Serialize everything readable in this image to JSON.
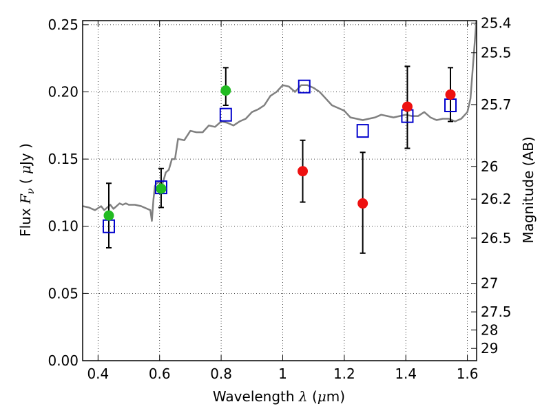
{
  "chart_data": {
    "type": "scatter",
    "xlabel": "Wavelength  λ (μm)",
    "ylabel": "Flux  Fν  ( μJy )",
    "y2label": "Magnitude (AB)",
    "xlim": [
      0.35,
      1.63
    ],
    "ylim": [
      0.0,
      0.253
    ],
    "grid": true,
    "x_ticks": [
      {
        "value": 0.4,
        "label": "0.4"
      },
      {
        "value": 0.6,
        "label": "0.6"
      },
      {
        "value": 0.8,
        "label": "0.8"
      },
      {
        "value": 1.0,
        "label": "1"
      },
      {
        "value": 1.2,
        "label": "1.2"
      },
      {
        "value": 1.4,
        "label": "1.4"
      },
      {
        "value": 1.6,
        "label": "1.6"
      }
    ],
    "y_ticks": [
      {
        "value": 0.0,
        "label": "0.00"
      },
      {
        "value": 0.05,
        "label": "0.05"
      },
      {
        "value": 0.1,
        "label": "0.10"
      },
      {
        "value": 0.15,
        "label": "0.15"
      },
      {
        "value": 0.2,
        "label": "0.20"
      },
      {
        "value": 0.25,
        "label": "0.25"
      }
    ],
    "y2_ticks": [
      {
        "value": 25.4,
        "label": "25.4"
      },
      {
        "value": 25.5,
        "label": "25.5"
      },
      {
        "value": 25.7,
        "label": "25.7"
      },
      {
        "value": 26,
        "label": "26"
      },
      {
        "value": 26.2,
        "label": "26.2"
      },
      {
        "value": 26.5,
        "label": "26.5"
      },
      {
        "value": 27,
        "label": "27"
      },
      {
        "value": 27.5,
        "label": "27.5"
      },
      {
        "value": 28,
        "label": "28"
      },
      {
        "value": 29,
        "label": "29"
      }
    ],
    "series": [
      {
        "type": "line",
        "color": "#808080",
        "x": [
          0.35,
          0.37,
          0.39,
          0.41,
          0.42,
          0.43,
          0.44,
          0.45,
          0.46,
          0.47,
          0.48,
          0.49,
          0.5,
          0.52,
          0.54,
          0.56,
          0.57,
          0.575,
          0.58,
          0.585,
          0.59,
          0.6,
          0.61,
          0.62,
          0.63,
          0.64,
          0.65,
          0.66,
          0.68,
          0.7,
          0.72,
          0.74,
          0.76,
          0.78,
          0.8,
          0.82,
          0.84,
          0.86,
          0.88,
          0.9,
          0.92,
          0.94,
          0.96,
          0.98,
          1.0,
          1.02,
          1.04,
          1.06,
          1.08,
          1.1,
          1.12,
          1.14,
          1.16,
          1.18,
          1.2,
          1.22,
          1.24,
          1.26,
          1.28,
          1.3,
          1.32,
          1.34,
          1.36,
          1.38,
          1.4,
          1.42,
          1.44,
          1.46,
          1.48,
          1.5,
          1.52,
          1.54,
          1.56,
          1.58,
          1.6,
          1.61,
          1.62,
          1.63
        ],
        "values": [
          0.115,
          0.114,
          0.112,
          0.115,
          0.112,
          0.114,
          0.116,
          0.113,
          0.115,
          0.117,
          0.116,
          0.117,
          0.116,
          0.116,
          0.115,
          0.113,
          0.112,
          0.104,
          0.12,
          0.13,
          0.132,
          0.133,
          0.132,
          0.14,
          0.142,
          0.15,
          0.15,
          0.165,
          0.164,
          0.171,
          0.17,
          0.17,
          0.175,
          0.174,
          0.178,
          0.177,
          0.175,
          0.178,
          0.18,
          0.185,
          0.187,
          0.19,
          0.197,
          0.2,
          0.205,
          0.204,
          0.2,
          0.205,
          0.205,
          0.203,
          0.2,
          0.195,
          0.19,
          0.188,
          0.186,
          0.181,
          0.18,
          0.179,
          0.18,
          0.181,
          0.183,
          0.182,
          0.181,
          0.182,
          0.183,
          0.182,
          0.182,
          0.185,
          0.181,
          0.179,
          0.18,
          0.18,
          0.178,
          0.18,
          0.185,
          0.195,
          0.225,
          0.255
        ]
      },
      {
        "type": "scatter",
        "marker": "open-square",
        "color": "#0000cc",
        "x": [
          0.435,
          0.605,
          0.815,
          1.07,
          1.26,
          1.405,
          1.545
        ],
        "values": [
          0.1,
          0.129,
          0.183,
          0.204,
          0.171,
          0.182,
          0.19
        ]
      },
      {
        "type": "scatter",
        "marker": "filled-circle",
        "color": "#22bb22",
        "x": [
          0.435,
          0.605,
          0.815
        ],
        "values": [
          0.108,
          0.128,
          0.201
        ],
        "err_low": [
          0.084,
          0.114,
          0.19
        ],
        "err_high": [
          0.132,
          0.143,
          0.218
        ]
      },
      {
        "type": "scatter",
        "marker": "filled-circle",
        "color": "#ee1111",
        "x": [
          1.065,
          1.26,
          1.405,
          1.545
        ],
        "values": [
          0.141,
          0.117,
          0.189,
          0.198
        ],
        "err_low": [
          0.118,
          0.08,
          0.158,
          0.178
        ],
        "err_high": [
          0.164,
          0.155,
          0.219,
          0.218
        ]
      }
    ]
  }
}
